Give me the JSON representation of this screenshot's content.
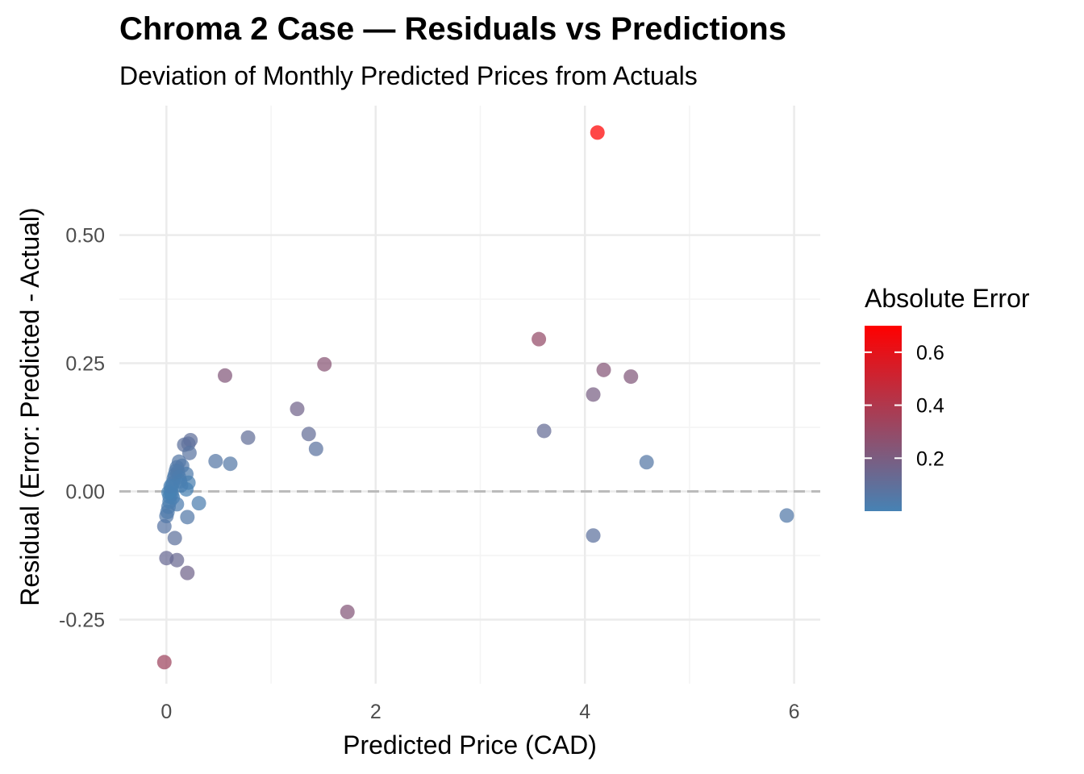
{
  "chart_data": {
    "type": "scatter",
    "title": "Chroma 2 Case — Residuals vs Predictions",
    "subtitle": "Deviation of Monthly Predicted Prices from Actuals",
    "xlabel": "Predicted Price (CAD)",
    "ylabel": "Residual (Error: Predicted - Actual)",
    "xlim": [
      -0.45,
      6.25
    ],
    "ylim": [
      -0.375,
      0.7525
    ],
    "x_ticks": [
      0,
      2,
      4,
      6
    ],
    "x_tick_labels": [
      "0",
      "2",
      "4",
      "6"
    ],
    "y_ticks": [
      -0.25,
      0.0,
      0.25,
      0.5
    ],
    "y_tick_labels": [
      "-0.25",
      "0.00",
      "0.25",
      "0.50"
    ],
    "grid": true,
    "reference_line": {
      "y": 0,
      "style": "dashed",
      "color": "#bbbbbb"
    },
    "legend": {
      "title": "Absolute Error",
      "position": "right",
      "low_color": "#4682B4",
      "high_color": "#FF0000",
      "range": [
        0.0,
        0.7
      ],
      "ticks": [
        0.2,
        0.4,
        0.6
      ],
      "tick_labels": [
        "0.2",
        "0.4",
        "0.6"
      ]
    },
    "points": [
      {
        "x": 4.12,
        "y": 0.7
      },
      {
        "x": 3.56,
        "y": 0.297
      },
      {
        "x": 4.18,
        "y": 0.237
      },
      {
        "x": 4.44,
        "y": 0.224
      },
      {
        "x": 4.08,
        "y": 0.189
      },
      {
        "x": 3.61,
        "y": 0.118
      },
      {
        "x": 4.59,
        "y": 0.057
      },
      {
        "x": 4.08,
        "y": -0.086
      },
      {
        "x": 5.93,
        "y": -0.047
      },
      {
        "x": 1.51,
        "y": 0.248
      },
      {
        "x": 1.25,
        "y": 0.161
      },
      {
        "x": 1.36,
        "y": 0.112
      },
      {
        "x": 1.43,
        "y": 0.083
      },
      {
        "x": 1.73,
        "y": -0.235
      },
      {
        "x": 0.56,
        "y": 0.226
      },
      {
        "x": 0.78,
        "y": 0.105
      },
      {
        "x": 0.47,
        "y": 0.059
      },
      {
        "x": 0.61,
        "y": 0.054
      },
      {
        "x": 0.31,
        "y": -0.023
      },
      {
        "x": 0.23,
        "y": 0.1
      },
      {
        "x": 0.17,
        "y": 0.091
      },
      {
        "x": 0.21,
        "y": 0.093
      },
      {
        "x": 0.22,
        "y": 0.075
      },
      {
        "x": 0.12,
        "y": 0.058
      },
      {
        "x": 0.15,
        "y": 0.05
      },
      {
        "x": 0.19,
        "y": 0.034
      },
      {
        "x": 0.21,
        "y": 0.017
      },
      {
        "x": 0.19,
        "y": 0.004
      },
      {
        "x": 0.2,
        "y": -0.05
      },
      {
        "x": 0.2,
        "y": -0.159
      },
      {
        "x": 0.1,
        "y": -0.025
      },
      {
        "x": 0.08,
        "y": -0.091
      },
      {
        "x": 0.1,
        "y": -0.134
      },
      {
        "x": 0.0,
        "y": -0.13
      },
      {
        "x": -0.02,
        "y": -0.068
      },
      {
        "x": -0.02,
        "y": -0.333
      },
      {
        "x": 0.0,
        "y": -0.048
      },
      {
        "x": 0.01,
        "y": -0.04
      },
      {
        "x": 0.02,
        "y": -0.03
      },
      {
        "x": 0.03,
        "y": -0.02
      },
      {
        "x": 0.03,
        "y": -0.01
      },
      {
        "x": 0.04,
        "y": 0.0
      },
      {
        "x": 0.05,
        "y": 0.008
      },
      {
        "x": 0.06,
        "y": 0.016
      },
      {
        "x": 0.07,
        "y": 0.025
      },
      {
        "x": 0.08,
        "y": 0.032
      },
      {
        "x": 0.09,
        "y": 0.04
      },
      {
        "x": 0.1,
        "y": 0.047
      },
      {
        "x": 0.11,
        "y": 0.038
      },
      {
        "x": 0.12,
        "y": 0.028
      },
      {
        "x": 0.13,
        "y": 0.02
      },
      {
        "x": 0.14,
        "y": 0.012
      },
      {
        "x": 0.05,
        "y": -0.005
      },
      {
        "x": 0.06,
        "y": -0.012
      },
      {
        "x": 0.02,
        "y": -0.002
      },
      {
        "x": 0.04,
        "y": 0.01
      }
    ]
  }
}
